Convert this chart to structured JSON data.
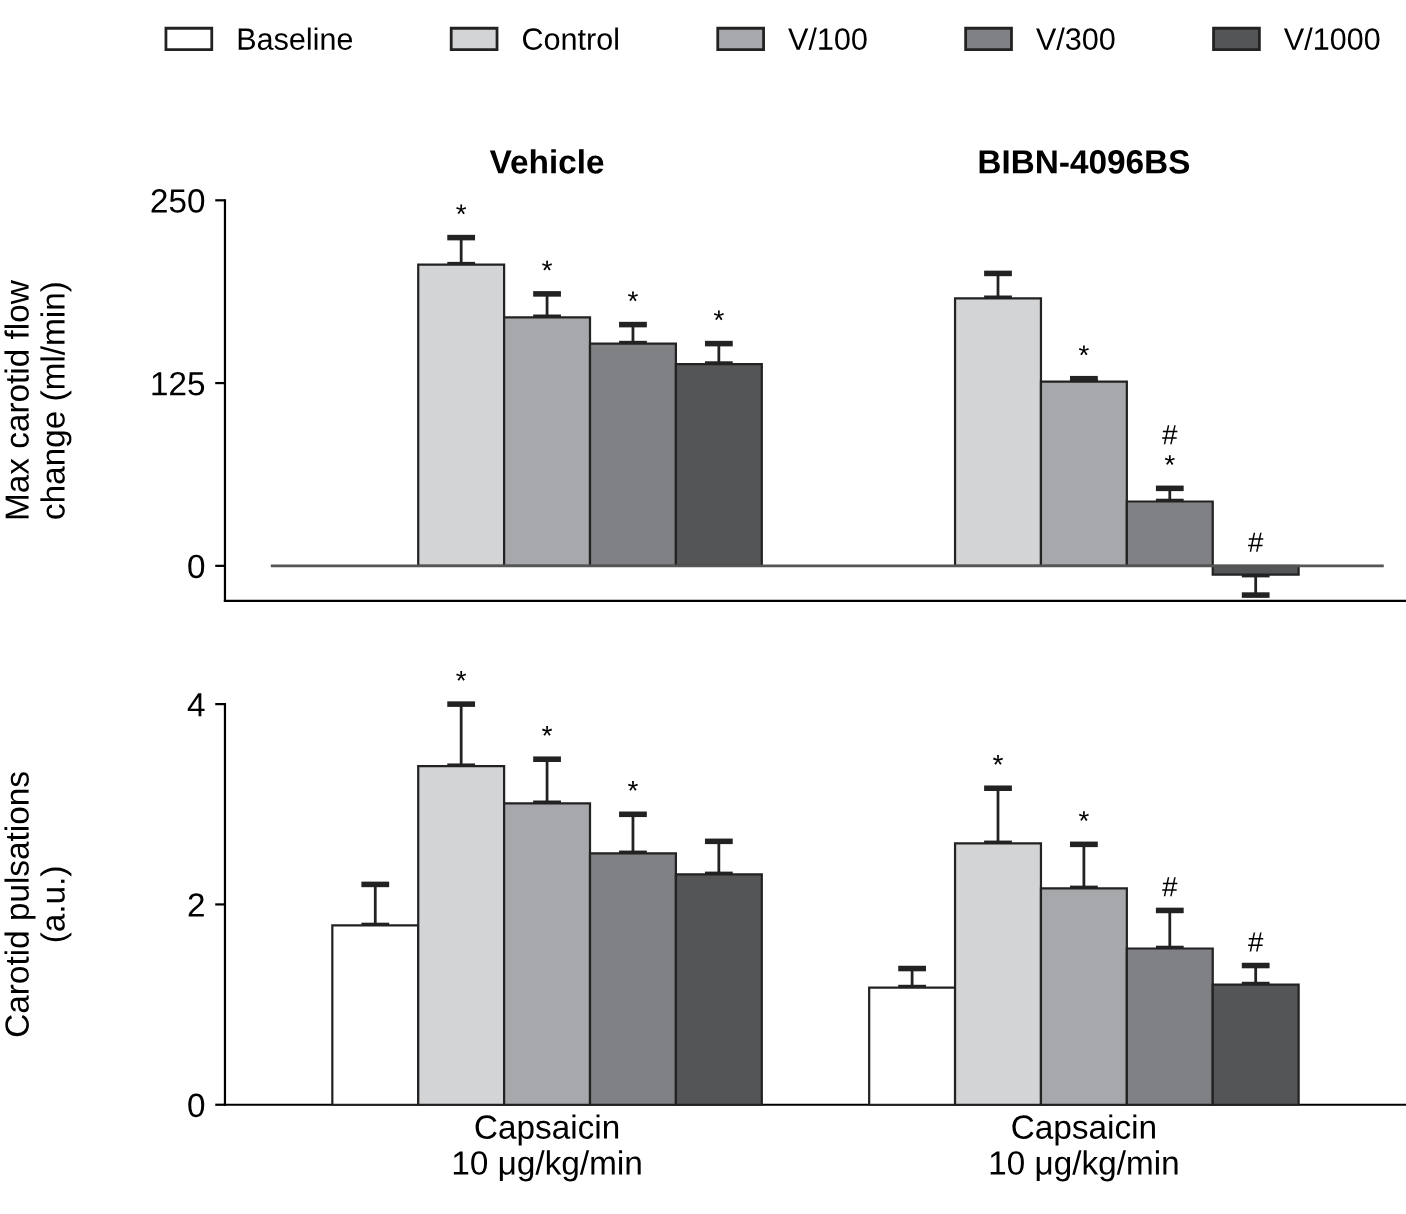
{
  "chart_data": [
    {
      "type": "bar",
      "ylabel": "Max carotid flow\nchange (ml/min)",
      "categories": [
        "Vehicle",
        "BIBN-4096BS"
      ],
      "ylim": [
        -24,
        250
      ],
      "yticks": [
        0,
        125,
        250
      ],
      "tick_labels": "y",
      "legend": "top",
      "grid": false,
      "ref_lines": [
        {
          "axis": "y",
          "value": 0,
          "color": "#555555"
        }
      ],
      "series": [
        {
          "name": "Baseline",
          "color": "#ffffff",
          "values": [
            null,
            null
          ]
        },
        {
          "name": "Control",
          "color": "#d3d4d6",
          "values": [
            206,
            183
          ],
          "errors": [
            [
              206,
              224.5
            ],
            [
              183,
              200
            ]
          ],
          "value_labels": [
            "*",
            null
          ]
        },
        {
          "name": "V/100",
          "color": "#a7a8ab",
          "values": [
            170,
            126
          ],
          "errors": [
            [
              170,
              186
            ],
            [
              126,
              128
            ]
          ],
          "value_labels": [
            "*",
            "*"
          ]
        },
        {
          "name": "V/300",
          "color": "#808184",
          "values": [
            152,
            44
          ],
          "errors": [
            [
              152,
              165
            ],
            [
              44,
              53
            ]
          ],
          "value_labels": [
            "*",
            "#\n*"
          ]
        },
        {
          "name": "V/1000",
          "color": "#545557",
          "values": [
            138,
            -6
          ],
          "errors": [
            [
              138,
              152
            ],
            [
              -20,
              -6
            ]
          ],
          "value_labels": [
            "*",
            "#"
          ]
        }
      ]
    },
    {
      "type": "bar",
      "ylabel": "Carotid pulsations\n(a.u.)",
      "categories": [
        "Capsaicin\n10 μg/kg/min",
        "Capsaicin\n10 μg/kg/min"
      ],
      "ylim": [
        0,
        4
      ],
      "yticks": [
        0,
        2,
        4
      ],
      "grid": false,
      "series": [
        {
          "color": "#ffffff",
          "values": [
            1.79,
            1.17
          ],
          "errors": [
            [
              1.79,
              2.2
            ],
            [
              1.17,
              1.36
            ]
          ]
        },
        {
          "color": "#d3d4d6",
          "values": [
            3.38,
            2.61
          ],
          "errors": [
            [
              3.38,
              4.0
            ],
            [
              2.61,
              3.16
            ]
          ],
          "value_labels": [
            "*",
            "*"
          ]
        },
        {
          "color": "#a7a8ab",
          "values": [
            3.01,
            2.16
          ],
          "errors": [
            [
              3.01,
              3.45
            ],
            [
              2.16,
              2.6
            ]
          ],
          "value_labels": [
            "*",
            "*"
          ]
        },
        {
          "color": "#808184",
          "values": [
            2.51,
            1.56
          ],
          "errors": [
            [
              2.51,
              2.9
            ],
            [
              1.56,
              1.94
            ]
          ],
          "value_labels": [
            "*",
            "#"
          ]
        },
        {
          "color": "#545557",
          "values": [
            2.3,
            1.2
          ],
          "errors": [
            [
              2.3,
              2.63
            ],
            [
              1.2,
              1.39
            ]
          ],
          "value_labels": [
            null,
            "#"
          ]
        }
      ]
    }
  ]
}
